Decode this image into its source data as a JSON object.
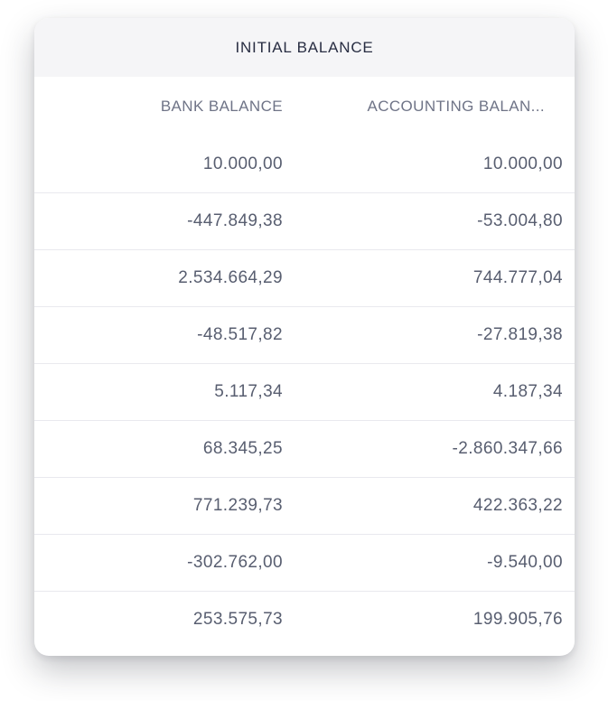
{
  "card": {
    "title": "INITIAL BALANCE",
    "columns": [
      {
        "label": "BANK BALANCE"
      },
      {
        "label": "ACCOUNTING BALAN..."
      }
    ],
    "rows": [
      {
        "bank_balance": "10.000,00",
        "accounting_balance": "10.000,00"
      },
      {
        "bank_balance": "-447.849,38",
        "accounting_balance": "-53.004,80"
      },
      {
        "bank_balance": "2.534.664,29",
        "accounting_balance": "744.777,04"
      },
      {
        "bank_balance": "-48.517,82",
        "accounting_balance": "-27.819,38"
      },
      {
        "bank_balance": "5.117,34",
        "accounting_balance": "4.187,34"
      },
      {
        "bank_balance": "68.345,25",
        "accounting_balance": "-2.860.347,66"
      },
      {
        "bank_balance": "771.239,73",
        "accounting_balance": "422.363,22"
      },
      {
        "bank_balance": "-302.762,00",
        "accounting_balance": "-9.540,00"
      },
      {
        "bank_balance": "253.575,73",
        "accounting_balance": "199.905,76"
      }
    ],
    "colors": {
      "card_background": "#FFFFFF",
      "title_band_background": "#F5F5F7",
      "title_text": "#282D42",
      "column_header_text": "#6F7487",
      "number_text": "#585E70",
      "row_divider": "#E9E9EE"
    }
  }
}
